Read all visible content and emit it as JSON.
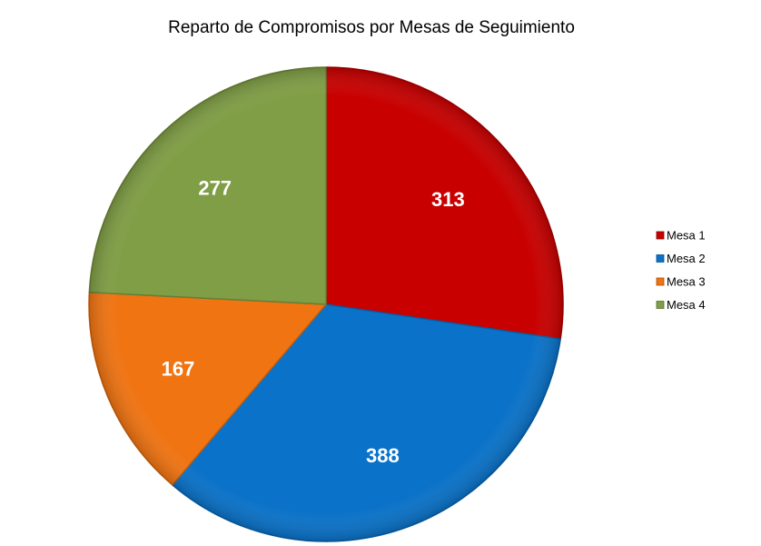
{
  "chart_data": {
    "type": "pie",
    "title": "Reparto de Compromisos por Mesas de Seguimiento",
    "categories": [
      "Mesa 1",
      "Mesa 2",
      "Mesa 3",
      "Mesa 4"
    ],
    "values": [
      313,
      388,
      167,
      277
    ],
    "colors": [
      "#c80000",
      "#0a72c8",
      "#f07412",
      "#7f9e45"
    ],
    "start_angle": "12 o'clock",
    "direction": "clockwise",
    "legend_position": "right",
    "data_labels": "values"
  }
}
